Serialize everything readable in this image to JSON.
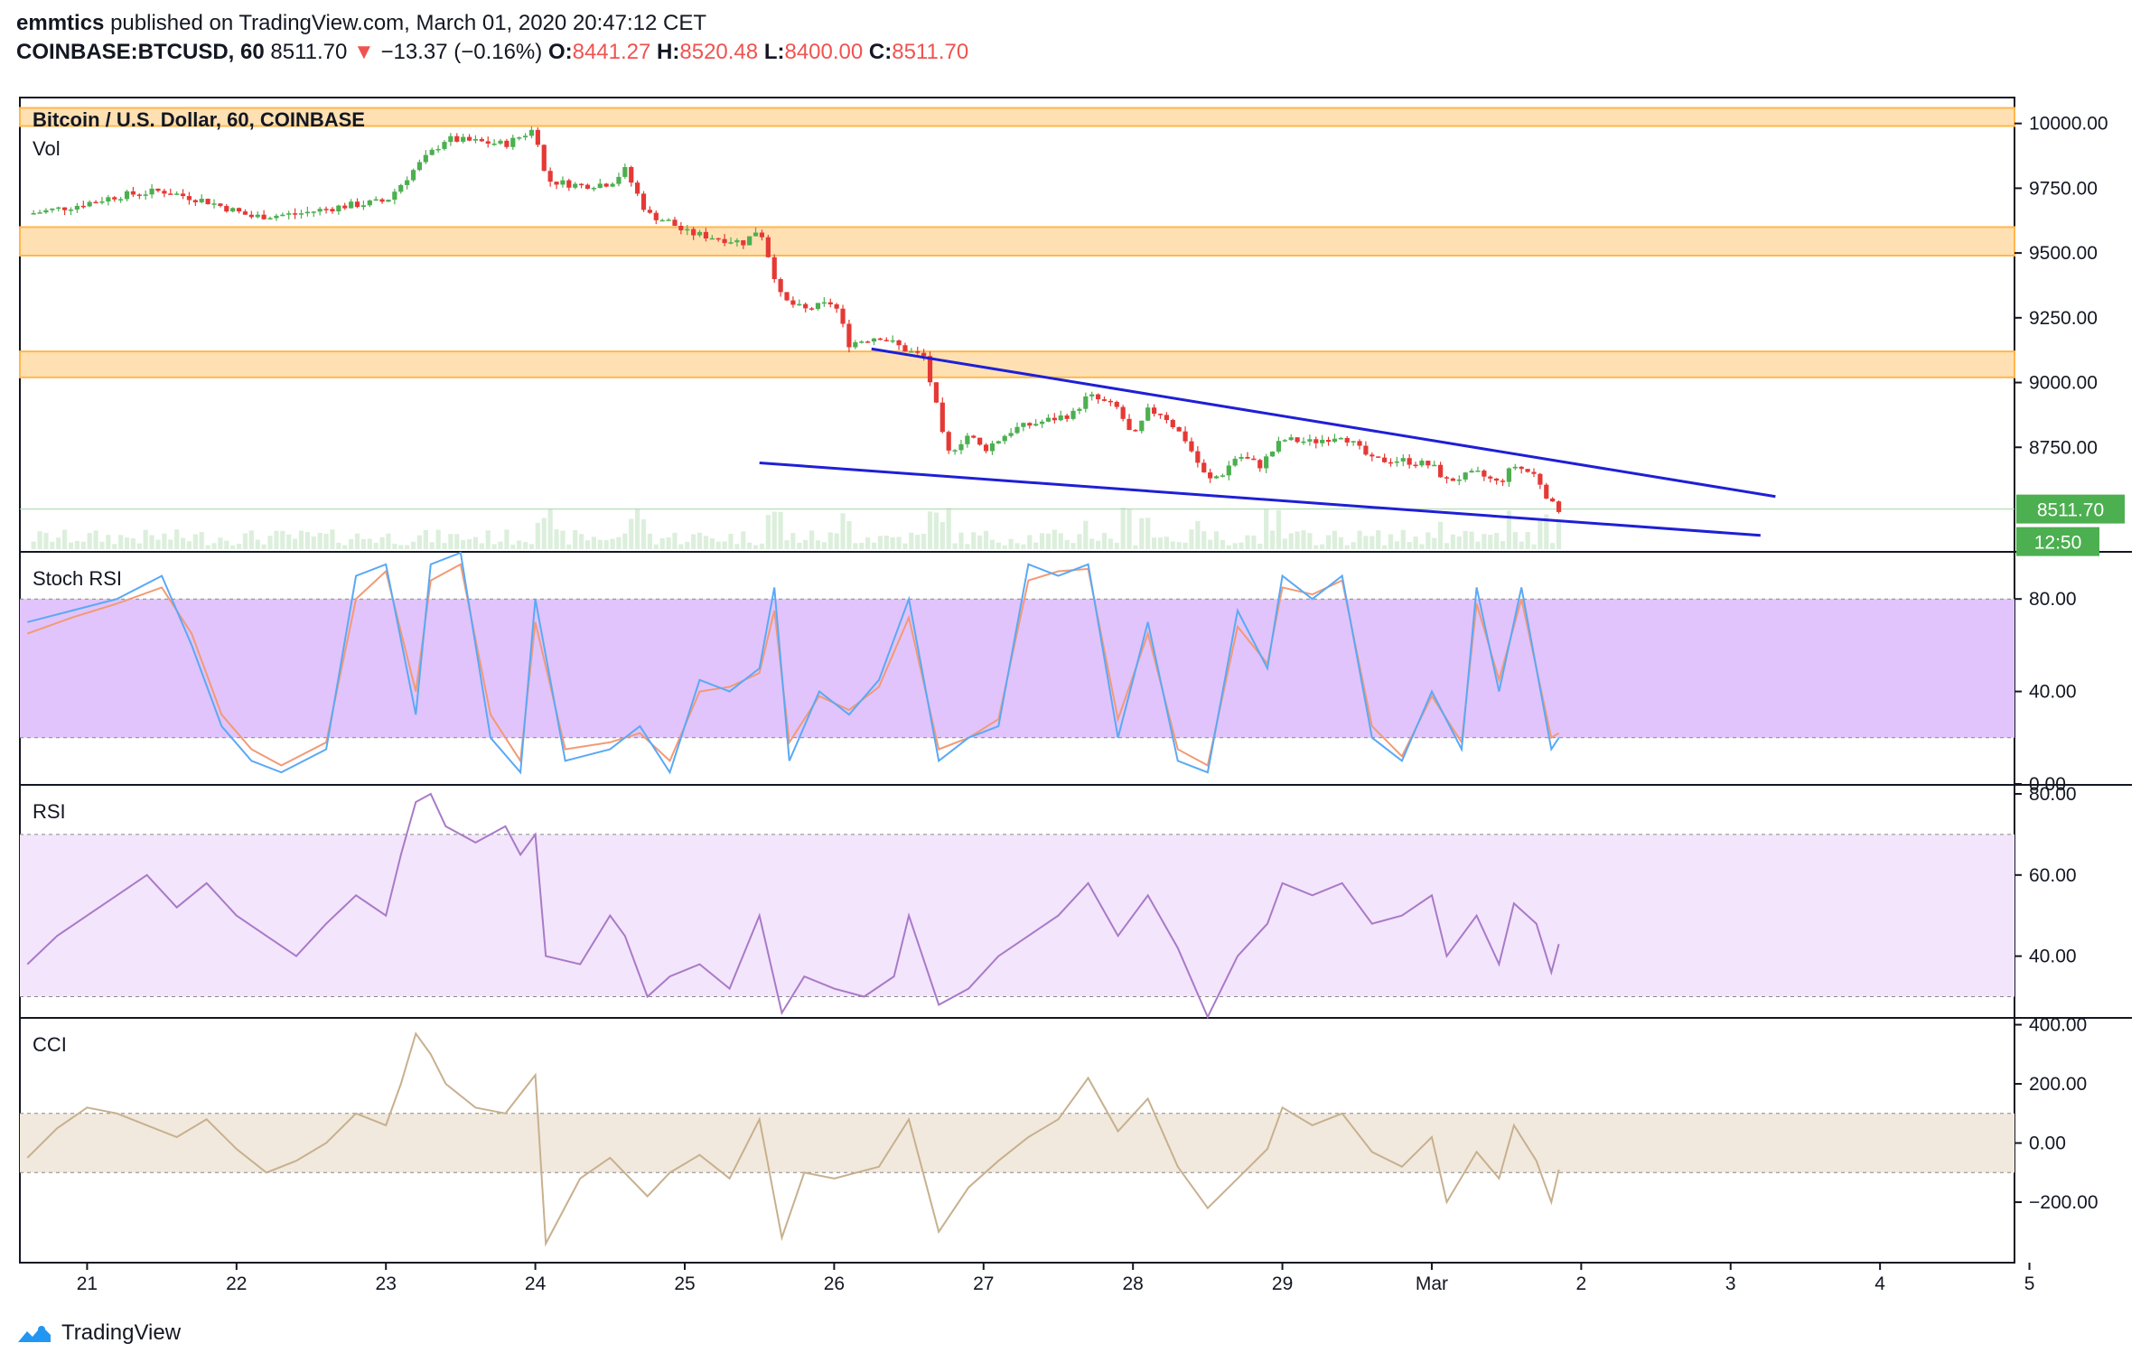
{
  "header": {
    "author": "emmtics",
    "published_text": "published on TradingView.com, March 01, 2020 20:47:12 CET",
    "symbol": "COINBASE:BTCUSD, 60",
    "last": "8511.70",
    "change_arrow": "▼",
    "change": "−13.37 (−0.16%)",
    "o_label": "O:",
    "o_value": "8441.27",
    "h_label": "H:",
    "h_value": "8520.48",
    "l_label": "L:",
    "l_value": "8400.00",
    "c_label": "C:",
    "c_value": "8511.70"
  },
  "footer": {
    "brand": "TradingView",
    "logo_icon": "tradingview-logo-icon"
  },
  "colors": {
    "up": "#26a69a",
    "down": "#ef5350",
    "candle_up": "#4caf50",
    "candle_down": "#e53935",
    "zone": "#ffe0b2",
    "zone_border": "#ffb74d",
    "trendline": "#1f1fd6",
    "stoch_band": "#e1c4fb",
    "rsi_band": "#f3e5fc",
    "cci_band": "#f1e9dd",
    "price_tag": "#4caf50",
    "stoch_k": "#5aa9f5",
    "stoch_d": "#f29a76",
    "rsi_line": "#a97ac7",
    "cci_line": "#c8b08e",
    "volume": "#dcefdc"
  },
  "chart_data": [
    {
      "type": "candlestick",
      "title": "Bitcoin / U.S. Dollar, 60, COINBASE",
      "sublabel": "Vol",
      "y_ticks": [
        "10000.00",
        "9750.00",
        "9500.00",
        "9250.00",
        "9000.00",
        "8750.00"
      ],
      "ylim": [
        8350,
        10100
      ],
      "x_ticks": [
        "21",
        "22",
        "23",
        "24",
        "25",
        "26",
        "27",
        "28",
        "29",
        "Mar",
        "2",
        "3",
        "4",
        "5"
      ],
      "last_price_tag": "8511.70",
      "countdown_tag": "12:50",
      "close_path": [
        [
          20.6,
          9650
        ],
        [
          20.9,
          9680
        ],
        [
          21.2,
          9720
        ],
        [
          21.5,
          9740
        ],
        [
          21.8,
          9700
        ],
        [
          22.1,
          9640
        ],
        [
          22.4,
          9650
        ],
        [
          22.7,
          9680
        ],
        [
          23.0,
          9700
        ],
        [
          23.2,
          9830
        ],
        [
          23.4,
          9940
        ],
        [
          23.6,
          9930
        ],
        [
          23.8,
          9920
        ],
        [
          24.0,
          9980
        ],
        [
          24.07,
          9780
        ],
        [
          24.3,
          9760
        ],
        [
          24.5,
          9770
        ],
        [
          24.6,
          9820
        ],
        [
          24.75,
          9650
        ],
        [
          24.9,
          9620
        ],
        [
          25.0,
          9580
        ],
        [
          25.2,
          9560
        ],
        [
          25.4,
          9540
        ],
        [
          25.5,
          9600
        ],
        [
          25.65,
          9320
        ],
        [
          25.8,
          9280
        ],
        [
          26.0,
          9310
        ],
        [
          26.1,
          9150
        ],
        [
          26.3,
          9180
        ],
        [
          26.5,
          9120
        ],
        [
          26.6,
          9100
        ],
        [
          26.7,
          8870
        ],
        [
          26.75,
          8720
        ],
        [
          26.9,
          8800
        ],
        [
          27.0,
          8740
        ],
        [
          27.2,
          8820
        ],
        [
          27.4,
          8850
        ],
        [
          27.6,
          8880
        ],
        [
          27.7,
          8950
        ],
        [
          27.9,
          8900
        ],
        [
          28.0,
          8780
        ],
        [
          28.1,
          8890
        ],
        [
          28.2,
          8880
        ],
        [
          28.35,
          8780
        ],
        [
          28.5,
          8620
        ],
        [
          28.6,
          8650
        ],
        [
          28.7,
          8720
        ],
        [
          28.85,
          8680
        ],
        [
          29.0,
          8780
        ],
        [
          29.2,
          8770
        ],
        [
          29.4,
          8800
        ],
        [
          29.6,
          8700
        ],
        [
          29.8,
          8700
        ],
        [
          30.0,
          8680
        ],
        [
          30.1,
          8620
        ],
        [
          30.3,
          8650
        ],
        [
          30.45,
          8610
        ],
        [
          30.55,
          8680
        ],
        [
          30.7,
          8640
        ],
        [
          30.8,
          8530
        ],
        [
          30.85,
          8511.7
        ]
      ],
      "zones": [
        [
          9990,
          10060
        ],
        [
          9490,
          9600
        ],
        [
          9020,
          9120
        ]
      ],
      "trendlines": [
        {
          "from": [
            26.25,
            9130
          ],
          "to": [
            32.3,
            8560
          ]
        },
        {
          "from": [
            25.5,
            8690
          ],
          "to": [
            32.2,
            8410
          ]
        }
      ]
    },
    {
      "type": "line",
      "title": "Stoch RSI",
      "y_ticks": [
        "80.00",
        "40.00",
        "0.00"
      ],
      "ylim": [
        0,
        100
      ],
      "band": [
        20,
        80
      ],
      "k": [
        [
          20.6,
          70
        ],
        [
          20.9,
          75
        ],
        [
          21.2,
          80
        ],
        [
          21.5,
          90
        ],
        [
          21.7,
          60
        ],
        [
          21.9,
          25
        ],
        [
          22.1,
          10
        ],
        [
          22.3,
          5
        ],
        [
          22.6,
          15
        ],
        [
          22.8,
          90
        ],
        [
          23.0,
          95
        ],
        [
          23.2,
          30
        ],
        [
          23.3,
          95
        ],
        [
          23.5,
          100
        ],
        [
          23.7,
          20
        ],
        [
          23.9,
          5
        ],
        [
          24.0,
          80
        ],
        [
          24.2,
          10
        ],
        [
          24.5,
          15
        ],
        [
          24.7,
          25
        ],
        [
          24.9,
          5
        ],
        [
          25.1,
          45
        ],
        [
          25.3,
          40
        ],
        [
          25.5,
          50
        ],
        [
          25.6,
          85
        ],
        [
          25.7,
          10
        ],
        [
          25.9,
          40
        ],
        [
          26.1,
          30
        ],
        [
          26.3,
          45
        ],
        [
          26.5,
          80
        ],
        [
          26.7,
          10
        ],
        [
          26.9,
          20
        ],
        [
          27.1,
          25
        ],
        [
          27.3,
          95
        ],
        [
          27.5,
          90
        ],
        [
          27.7,
          95
        ],
        [
          27.9,
          20
        ],
        [
          28.1,
          70
        ],
        [
          28.3,
          10
        ],
        [
          28.5,
          5
        ],
        [
          28.7,
          75
        ],
        [
          28.9,
          50
        ],
        [
          29.0,
          90
        ],
        [
          29.2,
          80
        ],
        [
          29.4,
          90
        ],
        [
          29.6,
          20
        ],
        [
          29.8,
          10
        ],
        [
          30.0,
          40
        ],
        [
          30.2,
          15
        ],
        [
          30.3,
          85
        ],
        [
          30.45,
          40
        ],
        [
          30.6,
          85
        ],
        [
          30.8,
          15
        ],
        [
          30.85,
          20
        ]
      ],
      "d": [
        [
          20.6,
          65
        ],
        [
          20.9,
          72
        ],
        [
          21.2,
          78
        ],
        [
          21.5,
          85
        ],
        [
          21.7,
          65
        ],
        [
          21.9,
          30
        ],
        [
          22.1,
          15
        ],
        [
          22.3,
          8
        ],
        [
          22.6,
          18
        ],
        [
          22.8,
          80
        ],
        [
          23.0,
          92
        ],
        [
          23.2,
          40
        ],
        [
          23.3,
          88
        ],
        [
          23.5,
          95
        ],
        [
          23.7,
          30
        ],
        [
          23.9,
          10
        ],
        [
          24.0,
          70
        ],
        [
          24.2,
          15
        ],
        [
          24.5,
          18
        ],
        [
          24.7,
          22
        ],
        [
          24.9,
          10
        ],
        [
          25.1,
          40
        ],
        [
          25.3,
          42
        ],
        [
          25.5,
          48
        ],
        [
          25.6,
          75
        ],
        [
          25.7,
          18
        ],
        [
          25.9,
          38
        ],
        [
          26.1,
          32
        ],
        [
          26.3,
          42
        ],
        [
          26.5,
          72
        ],
        [
          26.7,
          15
        ],
        [
          26.9,
          20
        ],
        [
          27.1,
          28
        ],
        [
          27.3,
          88
        ],
        [
          27.5,
          92
        ],
        [
          27.7,
          93
        ],
        [
          27.9,
          28
        ],
        [
          28.1,
          65
        ],
        [
          28.3,
          15
        ],
        [
          28.5,
          8
        ],
        [
          28.7,
          68
        ],
        [
          28.9,
          52
        ],
        [
          29.0,
          85
        ],
        [
          29.2,
          82
        ],
        [
          29.4,
          88
        ],
        [
          29.6,
          25
        ],
        [
          29.8,
          12
        ],
        [
          30.0,
          38
        ],
        [
          30.2,
          18
        ],
        [
          30.3,
          78
        ],
        [
          30.45,
          45
        ],
        [
          30.6,
          80
        ],
        [
          30.8,
          20
        ],
        [
          30.85,
          22
        ]
      ]
    },
    {
      "type": "line",
      "title": "RSI",
      "y_ticks": [
        "80.00",
        "60.00",
        "40.00"
      ],
      "ylim": [
        25,
        82
      ],
      "band": [
        30,
        70
      ],
      "values": [
        [
          20.6,
          38
        ],
        [
          20.8,
          45
        ],
        [
          21.0,
          50
        ],
        [
          21.2,
          55
        ],
        [
          21.4,
          60
        ],
        [
          21.6,
          52
        ],
        [
          21.8,
          58
        ],
        [
          22.0,
          50
        ],
        [
          22.2,
          45
        ],
        [
          22.4,
          40
        ],
        [
          22.6,
          48
        ],
        [
          22.8,
          55
        ],
        [
          23.0,
          50
        ],
        [
          23.1,
          65
        ],
        [
          23.2,
          78
        ],
        [
          23.3,
          80
        ],
        [
          23.4,
          72
        ],
        [
          23.5,
          70
        ],
        [
          23.6,
          68
        ],
        [
          23.8,
          72
        ],
        [
          23.9,
          65
        ],
        [
          24.0,
          70
        ],
        [
          24.07,
          40
        ],
        [
          24.3,
          38
        ],
        [
          24.5,
          50
        ],
        [
          24.6,
          45
        ],
        [
          24.75,
          30
        ],
        [
          24.9,
          35
        ],
        [
          25.1,
          38
        ],
        [
          25.3,
          32
        ],
        [
          25.5,
          50
        ],
        [
          25.65,
          26
        ],
        [
          25.8,
          35
        ],
        [
          26.0,
          32
        ],
        [
          26.2,
          30
        ],
        [
          26.4,
          35
        ],
        [
          26.5,
          50
        ],
        [
          26.7,
          28
        ],
        [
          26.9,
          32
        ],
        [
          27.1,
          40
        ],
        [
          27.3,
          45
        ],
        [
          27.5,
          50
        ],
        [
          27.7,
          58
        ],
        [
          27.9,
          45
        ],
        [
          28.1,
          55
        ],
        [
          28.3,
          42
        ],
        [
          28.5,
          25
        ],
        [
          28.7,
          40
        ],
        [
          28.9,
          48
        ],
        [
          29.0,
          58
        ],
        [
          29.2,
          55
        ],
        [
          29.4,
          58
        ],
        [
          29.6,
          48
        ],
        [
          29.8,
          50
        ],
        [
          30.0,
          55
        ],
        [
          30.1,
          40
        ],
        [
          30.3,
          50
        ],
        [
          30.45,
          38
        ],
        [
          30.55,
          53
        ],
        [
          30.7,
          48
        ],
        [
          30.8,
          36
        ],
        [
          30.85,
          43
        ]
      ]
    },
    {
      "type": "line",
      "title": "CCI",
      "y_ticks": [
        "400.00",
        "200.00",
        "0.00",
        "−200.00"
      ],
      "ylim": [
        -380,
        420
      ],
      "band": [
        -100,
        100
      ],
      "values": [
        [
          20.6,
          -50
        ],
        [
          20.8,
          50
        ],
        [
          21.0,
          120
        ],
        [
          21.2,
          100
        ],
        [
          21.4,
          60
        ],
        [
          21.6,
          20
        ],
        [
          21.8,
          80
        ],
        [
          22.0,
          -20
        ],
        [
          22.2,
          -100
        ],
        [
          22.4,
          -60
        ],
        [
          22.6,
          0
        ],
        [
          22.8,
          100
        ],
        [
          23.0,
          60
        ],
        [
          23.1,
          200
        ],
        [
          23.2,
          370
        ],
        [
          23.3,
          300
        ],
        [
          23.4,
          200
        ],
        [
          23.6,
          120
        ],
        [
          23.8,
          100
        ],
        [
          24.0,
          230
        ],
        [
          24.07,
          -340
        ],
        [
          24.3,
          -120
        ],
        [
          24.5,
          -50
        ],
        [
          24.75,
          -180
        ],
        [
          24.9,
          -100
        ],
        [
          25.1,
          -40
        ],
        [
          25.3,
          -120
        ],
        [
          25.5,
          80
        ],
        [
          25.65,
          -320
        ],
        [
          25.8,
          -100
        ],
        [
          26.0,
          -120
        ],
        [
          26.3,
          -80
        ],
        [
          26.5,
          80
        ],
        [
          26.7,
          -300
        ],
        [
          26.9,
          -150
        ],
        [
          27.1,
          -60
        ],
        [
          27.3,
          20
        ],
        [
          27.5,
          80
        ],
        [
          27.7,
          220
        ],
        [
          27.9,
          40
        ],
        [
          28.1,
          150
        ],
        [
          28.3,
          -80
        ],
        [
          28.5,
          -220
        ],
        [
          28.7,
          -120
        ],
        [
          28.9,
          -20
        ],
        [
          29.0,
          120
        ],
        [
          29.2,
          60
        ],
        [
          29.4,
          100
        ],
        [
          29.6,
          -30
        ],
        [
          29.8,
          -80
        ],
        [
          30.0,
          20
        ],
        [
          30.1,
          -200
        ],
        [
          30.3,
          -30
        ],
        [
          30.45,
          -120
        ],
        [
          30.55,
          60
        ],
        [
          30.7,
          -60
        ],
        [
          30.8,
          -200
        ],
        [
          30.85,
          -90
        ]
      ]
    }
  ]
}
